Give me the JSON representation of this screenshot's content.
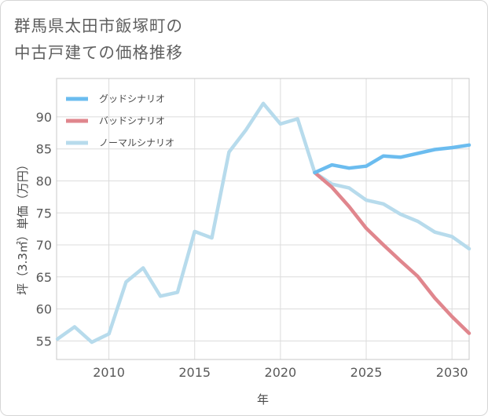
{
  "chart_data": {
    "type": "line",
    "title": [
      "群馬県太田市飯塚町の",
      "中古戸建ての価格推移"
    ],
    "xlabel": "年",
    "ylabel": "坪（3.3㎡）単価（万円）",
    "xlim": [
      2006,
      2031
    ],
    "ylim": [
      52,
      96
    ],
    "xticks": [
      2010,
      2015,
      2020,
      2025,
      2030
    ],
    "yticks": [
      55,
      60,
      65,
      70,
      75,
      80,
      85,
      90
    ],
    "series": [
      {
        "name": "グッドシナリオ",
        "color": "#6bbcef",
        "x": [
          2022,
          2023,
          2024,
          2025,
          2026,
          2027,
          2028,
          2029,
          2030,
          2031
        ],
        "y": [
          81.3,
          82.5,
          82.0,
          82.3,
          83.9,
          83.7,
          84.3,
          84.9,
          85.2,
          85.6
        ]
      },
      {
        "name": "バッドシナリオ",
        "color": "#e0868d",
        "x": [
          2022,
          2023,
          2024,
          2025,
          2026,
          2027,
          2028,
          2029,
          2030,
          2031
        ],
        "y": [
          81.3,
          79.0,
          76.0,
          72.6,
          70.0,
          67.5,
          65.1,
          61.7,
          58.8,
          56.2
        ]
      },
      {
        "name": "ノーマルシナリオ",
        "color": "#b7dbec",
        "x": [
          2007,
          2008,
          2009,
          2010,
          2011,
          2012,
          2013,
          2014,
          2015,
          2016,
          2017,
          2018,
          2019,
          2020,
          2021,
          2022,
          2023,
          2024,
          2025,
          2026,
          2027,
          2028,
          2029,
          2030,
          2031
        ],
        "y": [
          55.3,
          57.2,
          54.8,
          56.1,
          64.2,
          66.4,
          62.0,
          62.6,
          72.1,
          71.1,
          84.5,
          88.0,
          92.1,
          88.9,
          89.7,
          81.3,
          79.5,
          78.9,
          77.0,
          76.4,
          74.8,
          73.7,
          72.0,
          71.3,
          69.4
        ]
      }
    ],
    "legend_position": "top-left",
    "grid": true
  }
}
